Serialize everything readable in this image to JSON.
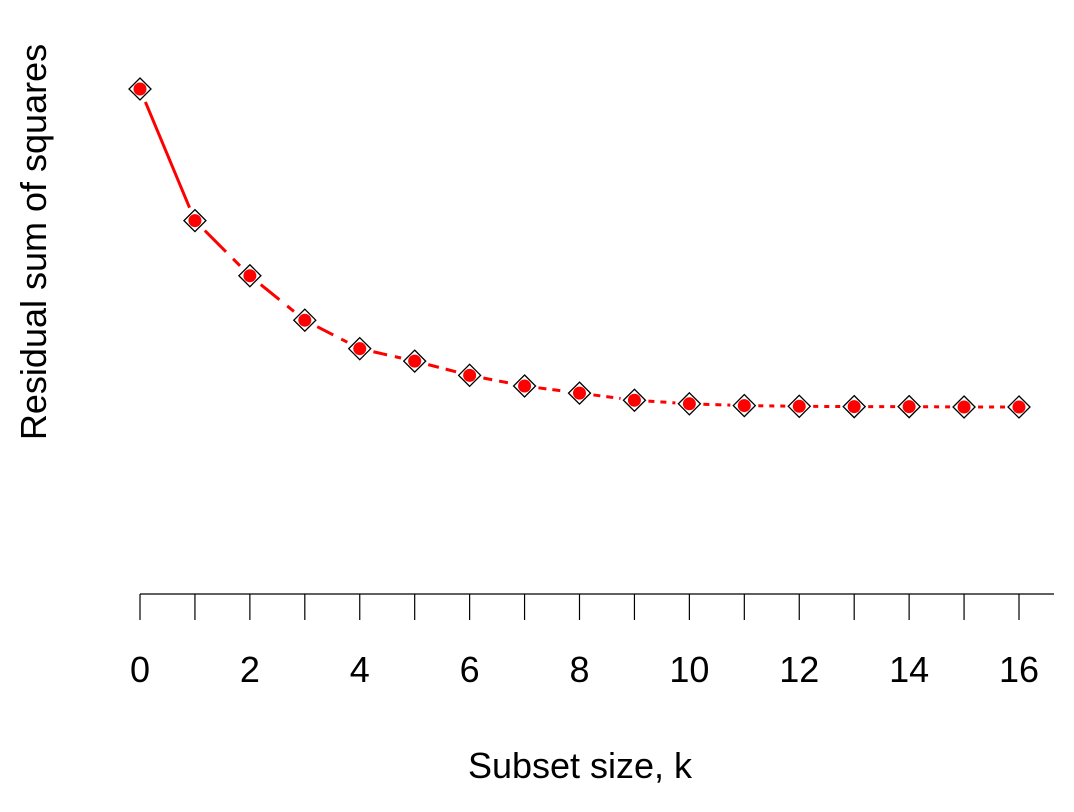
{
  "chart_data": {
    "type": "line",
    "xlabel": "Subset size, k",
    "ylabel": "Residual sum of squares",
    "x": [
      0,
      1,
      2,
      3,
      4,
      5,
      6,
      7,
      8,
      9,
      10,
      11,
      12,
      13,
      14,
      15,
      16
    ],
    "x_ticks": [
      0,
      1,
      2,
      3,
      4,
      5,
      6,
      7,
      8,
      9,
      10,
      11,
      12,
      13,
      14,
      15,
      16
    ],
    "x_tick_labels": [
      "0",
      "",
      "2",
      "",
      "4",
      "",
      "6",
      "",
      "8",
      "",
      "10",
      "",
      "12",
      "",
      "14",
      "",
      "16"
    ],
    "xlim": [
      0,
      16
    ],
    "y_axis_shown": false,
    "series": [
      {
        "values": [
          1.0,
          0.63,
          0.475,
          0.35,
          0.27,
          0.235,
          0.195,
          0.165,
          0.145,
          0.125,
          0.115,
          0.11,
          0.108,
          0.107,
          0.107,
          0.106,
          0.106
        ],
        "color": "#ff0000",
        "marker": "red dot inside diamond",
        "line_style": "dashed, getting finer as k increases"
      }
    ],
    "ylim": [
      -0.5,
      1.05
    ],
    "grid": false,
    "legend": "none"
  }
}
